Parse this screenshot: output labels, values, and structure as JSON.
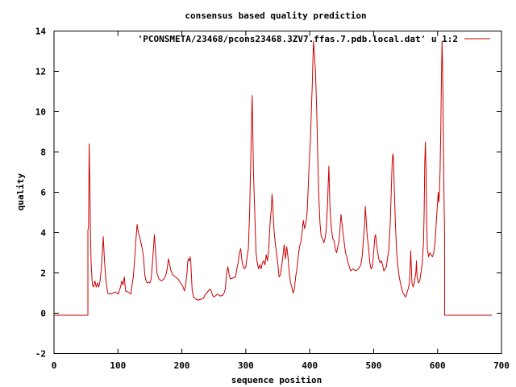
{
  "chart_data": {
    "type": "line",
    "title": "consensus based quality prediction",
    "xlabel": "sequence position",
    "ylabel": "quality",
    "xlim": [
      0,
      700
    ],
    "ylim": [
      -2,
      14
    ],
    "xticks": [
      0,
      100,
      200,
      300,
      400,
      500,
      600,
      700
    ],
    "yticks": [
      -2,
      0,
      2,
      4,
      6,
      8,
      10,
      12,
      14
    ],
    "grid": false,
    "legend_position": "top-right",
    "series": [
      {
        "name": "'PCONSMETA/23468/pcons23468.3ZV7.ffas.7.pdb.local.dat' u 1:2",
        "color": "#cc0000",
        "points": [
          [
            0,
            -0.1
          ],
          [
            53,
            -0.1
          ],
          [
            53,
            4.1
          ],
          [
            54,
            4.3
          ],
          [
            55,
            8.4
          ],
          [
            56,
            6.5
          ],
          [
            57,
            4.1
          ],
          [
            58,
            2.5
          ],
          [
            60,
            1.4
          ],
          [
            62,
            1.3
          ],
          [
            64,
            1.6
          ],
          [
            66,
            1.3
          ],
          [
            68,
            1.5
          ],
          [
            70,
            1.3
          ],
          [
            72,
            1.6
          ],
          [
            74,
            2.2
          ],
          [
            76,
            3.2
          ],
          [
            77,
            3.8
          ],
          [
            79,
            2.6
          ],
          [
            81,
            1.7
          ],
          [
            84,
            1.0
          ],
          [
            88,
            0.95
          ],
          [
            92,
            1.0
          ],
          [
            96,
            1.05
          ],
          [
            100,
            0.95
          ],
          [
            102,
            1.1
          ],
          [
            104,
            1.3
          ],
          [
            106,
            1.6
          ],
          [
            108,
            1.4
          ],
          [
            110,
            1.8
          ],
          [
            112,
            1.1
          ],
          [
            116,
            1.05
          ],
          [
            120,
            0.95
          ],
          [
            124,
            1.8
          ],
          [
            126,
            2.6
          ],
          [
            128,
            3.6
          ],
          [
            130,
            4.4
          ],
          [
            132,
            4.0
          ],
          [
            134,
            3.8
          ],
          [
            136,
            3.5
          ],
          [
            138,
            3.2
          ],
          [
            140,
            2.8
          ],
          [
            142,
            1.9
          ],
          [
            144,
            1.6
          ],
          [
            146,
            1.5
          ],
          [
            148,
            1.55
          ],
          [
            150,
            1.5
          ],
          [
            152,
            1.7
          ],
          [
            154,
            2.5
          ],
          [
            156,
            3.4
          ],
          [
            157,
            3.9
          ],
          [
            159,
            3.0
          ],
          [
            161,
            2.0
          ],
          [
            164,
            1.7
          ],
          [
            168,
            1.6
          ],
          [
            172,
            1.7
          ],
          [
            175,
            1.9
          ],
          [
            177,
            2.2
          ],
          [
            179,
            2.7
          ],
          [
            181,
            2.4
          ],
          [
            183,
            2.1
          ],
          [
            186,
            1.9
          ],
          [
            190,
            1.8
          ],
          [
            194,
            1.7
          ],
          [
            198,
            1.5
          ],
          [
            202,
            1.3
          ],
          [
            204,
            1.1
          ],
          [
            206,
            1.4
          ],
          [
            208,
            2.0
          ],
          [
            209,
            2.5
          ],
          [
            210,
            2.7
          ],
          [
            212,
            2.6
          ],
          [
            213,
            2.8
          ],
          [
            214,
            2.5
          ],
          [
            216,
            1.2
          ],
          [
            218,
            0.8
          ],
          [
            222,
            0.7
          ],
          [
            226,
            0.65
          ],
          [
            230,
            0.7
          ],
          [
            234,
            0.75
          ],
          [
            236,
            0.9
          ],
          [
            240,
            1.05
          ],
          [
            244,
            1.2
          ],
          [
            246,
            1.1
          ],
          [
            248,
            0.9
          ],
          [
            250,
            0.8
          ],
          [
            252,
            0.85
          ],
          [
            256,
            0.95
          ],
          [
            260,
            0.85
          ],
          [
            264,
            0.9
          ],
          [
            266,
            1.0
          ],
          [
            268,
            1.2
          ],
          [
            270,
            2.0
          ],
          [
            272,
            2.3
          ],
          [
            274,
            1.9
          ],
          [
            276,
            1.7
          ],
          [
            280,
            1.75
          ],
          [
            284,
            1.8
          ],
          [
            286,
            2.2
          ],
          [
            288,
            2.5
          ],
          [
            290,
            3.0
          ],
          [
            292,
            3.2
          ],
          [
            294,
            2.6
          ],
          [
            296,
            2.3
          ],
          [
            298,
            2.2
          ],
          [
            300,
            2.3
          ],
          [
            302,
            2.8
          ],
          [
            304,
            3.2
          ],
          [
            306,
            5.0
          ],
          [
            308,
            8.0
          ],
          [
            309,
            9.5
          ],
          [
            310,
            10.8
          ],
          [
            311,
            9.0
          ],
          [
            312,
            7.0
          ],
          [
            314,
            5.0
          ],
          [
            316,
            3.0
          ],
          [
            318,
            2.5
          ],
          [
            320,
            2.2
          ],
          [
            322,
            2.4
          ],
          [
            324,
            2.2
          ],
          [
            326,
            2.5
          ],
          [
            328,
            2.6
          ],
          [
            330,
            2.4
          ],
          [
            332,
            2.9
          ],
          [
            334,
            2.6
          ],
          [
            336,
            3.2
          ],
          [
            338,
            4.5
          ],
          [
            340,
            5.2
          ],
          [
            341,
            5.9
          ],
          [
            342,
            5.5
          ],
          [
            344,
            4.2
          ],
          [
            346,
            3.5
          ],
          [
            348,
            3.0
          ],
          [
            350,
            2.5
          ],
          [
            352,
            1.8
          ],
          [
            354,
            1.9
          ],
          [
            356,
            2.3
          ],
          [
            358,
            2.8
          ],
          [
            360,
            3.4
          ],
          [
            362,
            2.7
          ],
          [
            364,
            3.3
          ],
          [
            366,
            2.8
          ],
          [
            368,
            2.0
          ],
          [
            370,
            1.5
          ],
          [
            372,
            1.3
          ],
          [
            374,
            1.0
          ],
          [
            376,
            1.2
          ],
          [
            378,
            1.8
          ],
          [
            380,
            2.2
          ],
          [
            382,
            2.8
          ],
          [
            384,
            3.3
          ],
          [
            386,
            3.5
          ],
          [
            388,
            4.0
          ],
          [
            390,
            4.6
          ],
          [
            392,
            4.2
          ],
          [
            394,
            4.5
          ],
          [
            396,
            5.0
          ],
          [
            398,
            6.5
          ],
          [
            400,
            8.0
          ],
          [
            401,
            8.5
          ],
          [
            402,
            9.5
          ],
          [
            403,
            10.5
          ],
          [
            404,
            11.3
          ],
          [
            405,
            12.6
          ],
          [
            406,
            13.5
          ],
          [
            407,
            13.0
          ],
          [
            408,
            12.5
          ],
          [
            409,
            12.0
          ],
          [
            410,
            11.0
          ],
          [
            411,
            10.0
          ],
          [
            412,
            8.5
          ],
          [
            414,
            6.0
          ],
          [
            416,
            4.5
          ],
          [
            418,
            3.8
          ],
          [
            420,
            3.7
          ],
          [
            422,
            3.5
          ],
          [
            424,
            3.7
          ],
          [
            426,
            4.2
          ],
          [
            428,
            5.5
          ],
          [
            429,
            6.5
          ],
          [
            430,
            7.3
          ],
          [
            431,
            6.0
          ],
          [
            432,
            5.0
          ],
          [
            434,
            4.2
          ],
          [
            436,
            3.7
          ],
          [
            438,
            3.6
          ],
          [
            440,
            3.2
          ],
          [
            442,
            3.0
          ],
          [
            444,
            3.3
          ],
          [
            446,
            3.6
          ],
          [
            448,
            4.5
          ],
          [
            449,
            4.9
          ],
          [
            450,
            4.6
          ],
          [
            452,
            4.0
          ],
          [
            454,
            3.5
          ],
          [
            456,
            3.0
          ],
          [
            458,
            2.8
          ],
          [
            460,
            2.5
          ],
          [
            462,
            2.3
          ],
          [
            464,
            2.1
          ],
          [
            468,
            2.2
          ],
          [
            472,
            2.1
          ],
          [
            476,
            2.2
          ],
          [
            480,
            2.4
          ],
          [
            482,
            2.8
          ],
          [
            484,
            3.6
          ],
          [
            486,
            4.5
          ],
          [
            487,
            5.3
          ],
          [
            488,
            4.8
          ],
          [
            490,
            3.8
          ],
          [
            492,
            3.3
          ],
          [
            494,
            2.5
          ],
          [
            496,
            2.2
          ],
          [
            498,
            2.3
          ],
          [
            500,
            3.0
          ],
          [
            502,
            3.8
          ],
          [
            503,
            3.9
          ],
          [
            504,
            3.6
          ],
          [
            506,
            3.1
          ],
          [
            508,
            2.7
          ],
          [
            510,
            2.5
          ],
          [
            512,
            2.6
          ],
          [
            514,
            2.4
          ],
          [
            516,
            2.1
          ],
          [
            518,
            2.2
          ],
          [
            520,
            2.3
          ],
          [
            522,
            2.8
          ],
          [
            524,
            3.2
          ],
          [
            526,
            4.5
          ],
          [
            527,
            5.5
          ],
          [
            528,
            6.5
          ],
          [
            529,
            7.5
          ],
          [
            530,
            7.9
          ],
          [
            531,
            7.7
          ],
          [
            532,
            6.5
          ],
          [
            534,
            4.5
          ],
          [
            536,
            3.0
          ],
          [
            538,
            2.3
          ],
          [
            540,
            1.8
          ],
          [
            542,
            1.5
          ],
          [
            544,
            1.2
          ],
          [
            546,
            1.0
          ],
          [
            548,
            0.9
          ],
          [
            550,
            0.8
          ],
          [
            552,
            1.0
          ],
          [
            554,
            1.2
          ],
          [
            556,
            1.5
          ],
          [
            557,
            2.2
          ],
          [
            558,
            3.1
          ],
          [
            559,
            2.2
          ],
          [
            560,
            1.5
          ],
          [
            562,
            1.3
          ],
          [
            564,
            1.6
          ],
          [
            566,
            2.0
          ],
          [
            567,
            2.6
          ],
          [
            568,
            1.8
          ],
          [
            570,
            1.5
          ],
          [
            572,
            1.6
          ],
          [
            574,
            2.0
          ],
          [
            576,
            2.5
          ],
          [
            578,
            3.5
          ],
          [
            579,
            5.0
          ],
          [
            580,
            7.5
          ],
          [
            581,
            8.5
          ],
          [
            582,
            7.0
          ],
          [
            583,
            4.5
          ],
          [
            584,
            3.2
          ],
          [
            586,
            2.8
          ],
          [
            588,
            3.0
          ],
          [
            590,
            2.9
          ],
          [
            592,
            2.8
          ],
          [
            594,
            3.0
          ],
          [
            596,
            3.5
          ],
          [
            598,
            4.5
          ],
          [
            600,
            5.5
          ],
          [
            601,
            6.0
          ],
          [
            602,
            5.5
          ],
          [
            603,
            6.0
          ],
          [
            604,
            7.2
          ],
          [
            605,
            9.0
          ],
          [
            606,
            11.5
          ],
          [
            607,
            13.5
          ],
          [
            608,
            12.0
          ],
          [
            609,
            9.0
          ],
          [
            610,
            6.0
          ],
          [
            611,
            4.0
          ],
          [
            611,
            -0.1
          ],
          [
            685,
            -0.1
          ]
        ]
      }
    ]
  }
}
